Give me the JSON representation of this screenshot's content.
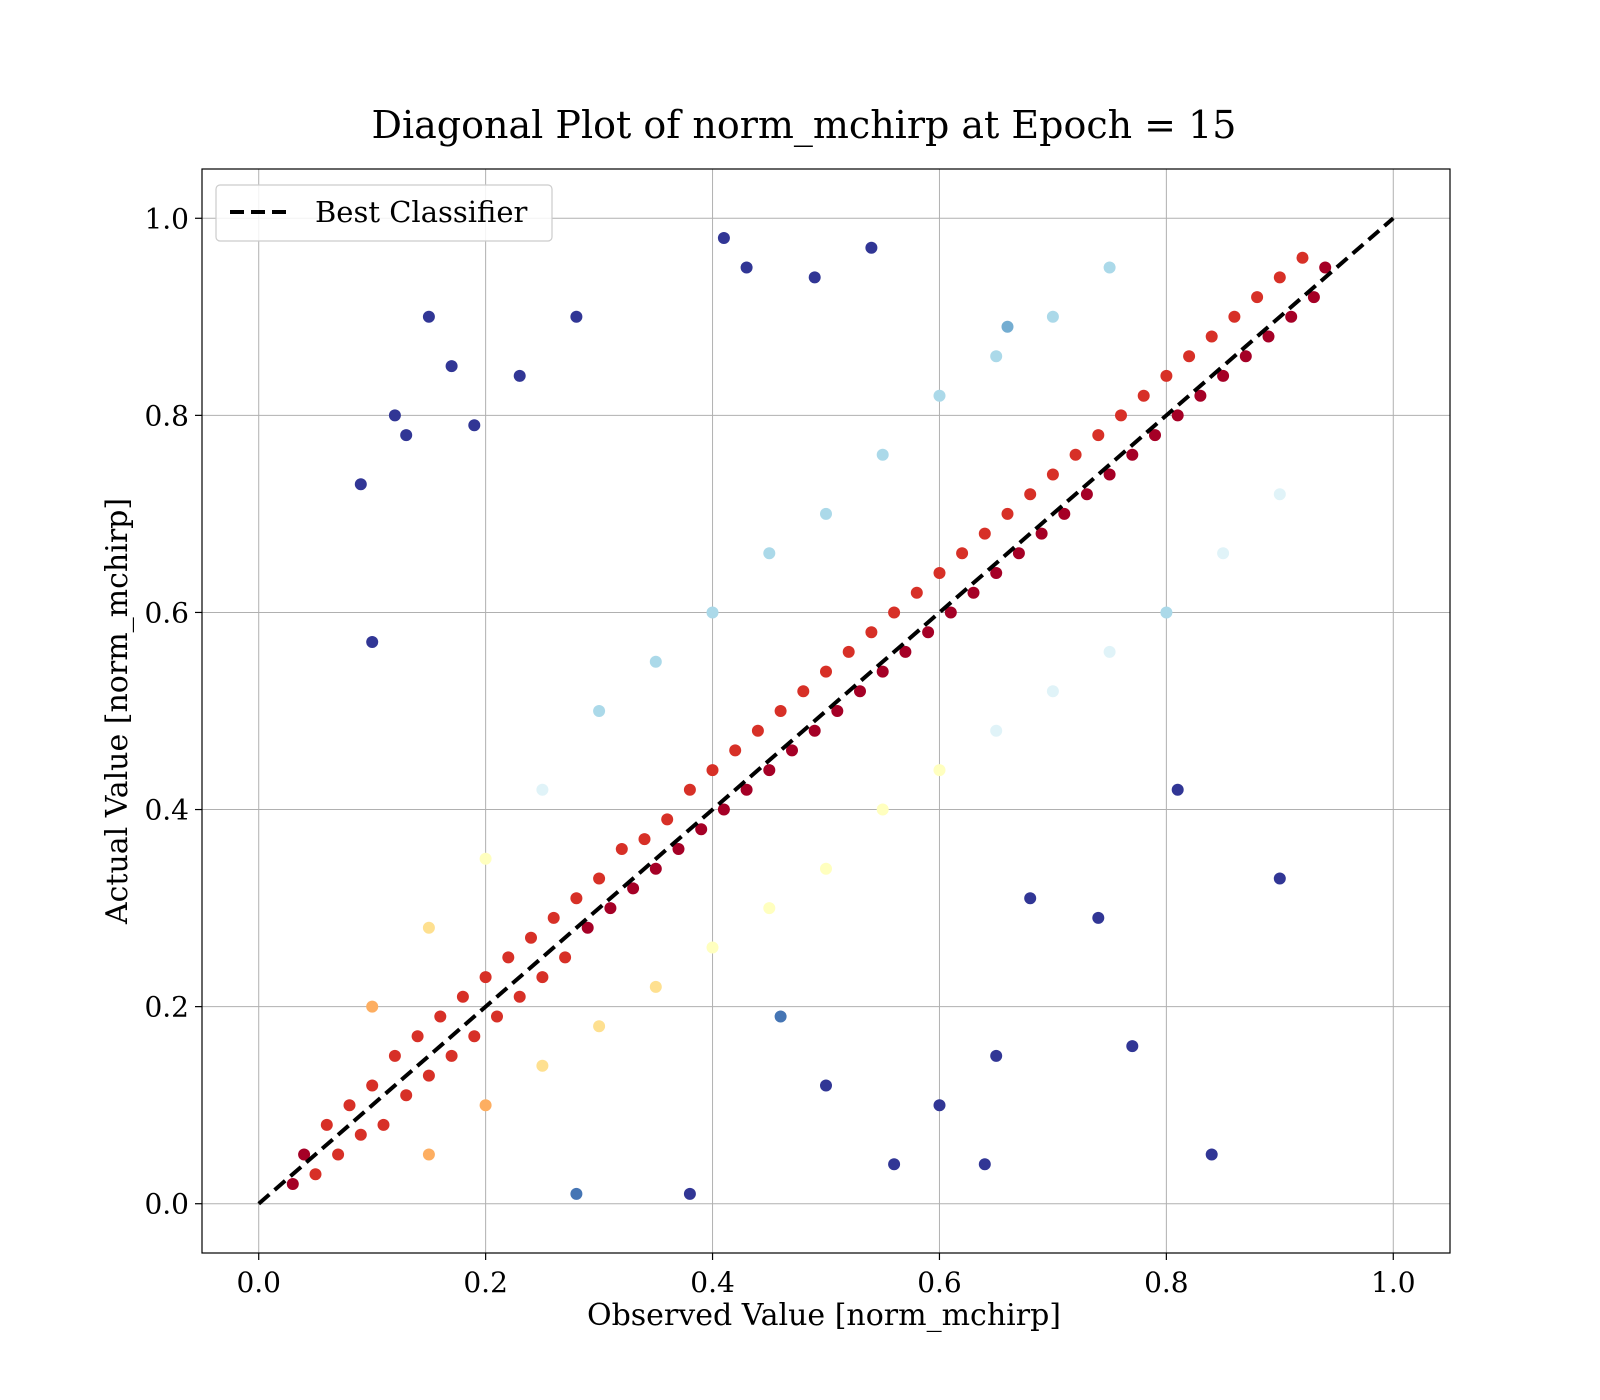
{
  "chart_data": {
    "type": "scatter",
    "title": "Diagonal Plot of norm_mchirp at Epoch = 15",
    "xlabel": "Observed Value [norm_mchirp]",
    "ylabel": "Actual Value [norm_mchirp]",
    "xlim": [
      -0.05,
      1.05
    ],
    "ylim": [
      -0.05,
      1.05
    ],
    "xticks": [
      0.0,
      0.2,
      0.4,
      0.6,
      0.8,
      1.0
    ],
    "yticks": [
      0.0,
      0.2,
      0.4,
      0.6,
      0.8,
      1.0
    ],
    "xtick_labels": [
      "0.0",
      "0.2",
      "0.4",
      "0.6",
      "0.8",
      "1.0"
    ],
    "ytick_labels": [
      "0.0",
      "0.2",
      "0.4",
      "0.6",
      "0.8",
      "1.0"
    ],
    "grid": true,
    "legend": {
      "placement": "top-left",
      "entries": [
        "Best Classifier"
      ]
    },
    "colormap": "RdYlBu_r",
    "colors": [
      "#313695",
      "#4575b4",
      "#74add1",
      "#abd9e9",
      "#e0f3f8",
      "#ffffbf",
      "#fee090",
      "#fdae61",
      "#f46d43",
      "#d73027",
      "#a50026"
    ],
    "reference_line": {
      "name": "Best Classifier",
      "style": "dashed",
      "color": "#000000",
      "points": [
        [
          0.0,
          0.0
        ],
        [
          1.0,
          1.0
        ]
      ]
    },
    "points": [
      [
        0.03,
        0.02
      ],
      [
        0.04,
        0.05
      ],
      [
        0.05,
        0.03
      ],
      [
        0.06,
        0.08
      ],
      [
        0.07,
        0.05
      ],
      [
        0.08,
        0.1
      ],
      [
        0.09,
        0.07
      ],
      [
        0.1,
        0.12
      ],
      [
        0.11,
        0.08
      ],
      [
        0.12,
        0.15
      ],
      [
        0.13,
        0.11
      ],
      [
        0.14,
        0.17
      ],
      [
        0.15,
        0.13
      ],
      [
        0.16,
        0.19
      ],
      [
        0.17,
        0.15
      ],
      [
        0.18,
        0.21
      ],
      [
        0.19,
        0.17
      ],
      [
        0.2,
        0.23
      ],
      [
        0.21,
        0.19
      ],
      [
        0.22,
        0.25
      ],
      [
        0.23,
        0.21
      ],
      [
        0.24,
        0.27
      ],
      [
        0.25,
        0.23
      ],
      [
        0.26,
        0.29
      ],
      [
        0.27,
        0.25
      ],
      [
        0.28,
        0.31
      ],
      [
        0.29,
        0.28
      ],
      [
        0.3,
        0.33
      ],
      [
        0.31,
        0.3
      ],
      [
        0.32,
        0.36
      ],
      [
        0.33,
        0.32
      ],
      [
        0.34,
        0.37
      ],
      [
        0.35,
        0.34
      ],
      [
        0.36,
        0.39
      ],
      [
        0.37,
        0.36
      ],
      [
        0.38,
        0.42
      ],
      [
        0.39,
        0.38
      ],
      [
        0.4,
        0.44
      ],
      [
        0.41,
        0.4
      ],
      [
        0.42,
        0.46
      ],
      [
        0.43,
        0.42
      ],
      [
        0.44,
        0.48
      ],
      [
        0.45,
        0.44
      ],
      [
        0.46,
        0.5
      ],
      [
        0.47,
        0.46
      ],
      [
        0.48,
        0.52
      ],
      [
        0.49,
        0.48
      ],
      [
        0.5,
        0.54
      ],
      [
        0.51,
        0.5
      ],
      [
        0.52,
        0.56
      ],
      [
        0.53,
        0.52
      ],
      [
        0.54,
        0.58
      ],
      [
        0.55,
        0.54
      ],
      [
        0.56,
        0.6
      ],
      [
        0.57,
        0.56
      ],
      [
        0.58,
        0.62
      ],
      [
        0.59,
        0.58
      ],
      [
        0.6,
        0.64
      ],
      [
        0.61,
        0.6
      ],
      [
        0.62,
        0.66
      ],
      [
        0.63,
        0.62
      ],
      [
        0.64,
        0.68
      ],
      [
        0.65,
        0.64
      ],
      [
        0.66,
        0.7
      ],
      [
        0.67,
        0.66
      ],
      [
        0.68,
        0.72
      ],
      [
        0.69,
        0.68
      ],
      [
        0.7,
        0.74
      ],
      [
        0.71,
        0.7
      ],
      [
        0.72,
        0.76
      ],
      [
        0.73,
        0.72
      ],
      [
        0.74,
        0.78
      ],
      [
        0.75,
        0.74
      ],
      [
        0.76,
        0.8
      ],
      [
        0.77,
        0.76
      ],
      [
        0.78,
        0.82
      ],
      [
        0.79,
        0.78
      ],
      [
        0.8,
        0.84
      ],
      [
        0.81,
        0.8
      ],
      [
        0.82,
        0.86
      ],
      [
        0.83,
        0.82
      ],
      [
        0.84,
        0.88
      ],
      [
        0.85,
        0.84
      ],
      [
        0.86,
        0.9
      ],
      [
        0.87,
        0.86
      ],
      [
        0.88,
        0.92
      ],
      [
        0.89,
        0.88
      ],
      [
        0.9,
        0.94
      ],
      [
        0.91,
        0.9
      ],
      [
        0.92,
        0.96
      ],
      [
        0.93,
        0.92
      ],
      [
        0.94,
        0.95
      ],
      [
        0.1,
        0.2
      ],
      [
        0.15,
        0.28
      ],
      [
        0.2,
        0.35
      ],
      [
        0.25,
        0.42
      ],
      [
        0.3,
        0.5
      ],
      [
        0.35,
        0.55
      ],
      [
        0.4,
        0.6
      ],
      [
        0.45,
        0.66
      ],
      [
        0.5,
        0.7
      ],
      [
        0.55,
        0.76
      ],
      [
        0.6,
        0.82
      ],
      [
        0.65,
        0.86
      ],
      [
        0.7,
        0.9
      ],
      [
        0.75,
        0.95
      ],
      [
        0.15,
        0.05
      ],
      [
        0.2,
        0.1
      ],
      [
        0.25,
        0.14
      ],
      [
        0.3,
        0.18
      ],
      [
        0.35,
        0.22
      ],
      [
        0.4,
        0.26
      ],
      [
        0.45,
        0.3
      ],
      [
        0.5,
        0.34
      ],
      [
        0.55,
        0.4
      ],
      [
        0.6,
        0.44
      ],
      [
        0.65,
        0.48
      ],
      [
        0.7,
        0.52
      ],
      [
        0.75,
        0.56
      ],
      [
        0.8,
        0.6
      ],
      [
        0.85,
        0.66
      ],
      [
        0.9,
        0.72
      ],
      [
        0.12,
        0.8
      ],
      [
        0.15,
        0.9
      ],
      [
        0.17,
        0.85
      ],
      [
        0.19,
        0.79
      ],
      [
        0.23,
        0.84
      ],
      [
        0.28,
        0.9
      ],
      [
        0.41,
        0.98
      ],
      [
        0.43,
        0.95
      ],
      [
        0.49,
        0.94
      ],
      [
        0.54,
        0.97
      ],
      [
        0.66,
        0.89
      ],
      [
        0.09,
        0.73
      ],
      [
        0.1,
        0.57
      ],
      [
        0.13,
        0.78
      ],
      [
        0.77,
        0.16
      ],
      [
        0.84,
        0.05
      ],
      [
        0.9,
        0.33
      ],
      [
        0.81,
        0.42
      ],
      [
        0.74,
        0.29
      ],
      [
        0.65,
        0.15
      ],
      [
        0.64,
        0.04
      ],
      [
        0.68,
        0.31
      ],
      [
        0.6,
        0.1
      ],
      [
        0.56,
        0.04
      ],
      [
        0.46,
        0.19
      ],
      [
        0.5,
        0.12
      ],
      [
        0.38,
        0.01
      ],
      [
        0.28,
        0.01
      ]
    ]
  }
}
